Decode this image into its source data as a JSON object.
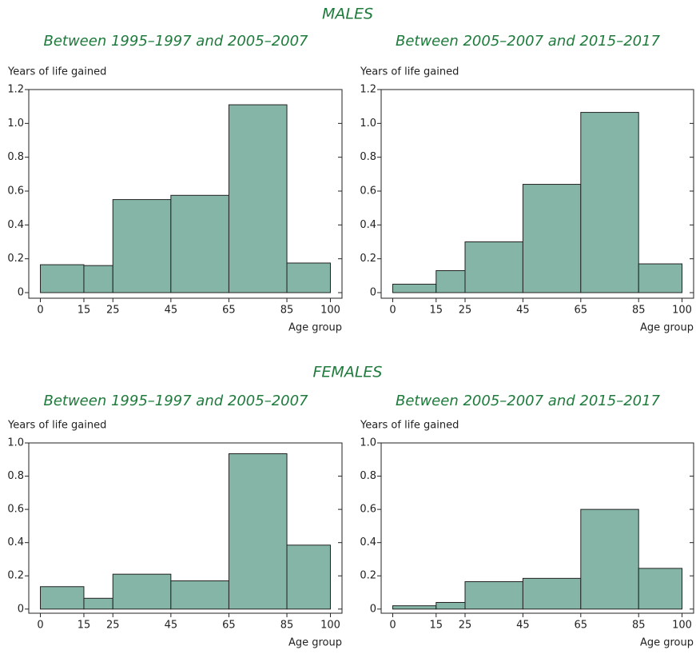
{
  "headings": [
    "MALES",
    "FEMALES"
  ],
  "chart_data": [
    {
      "type": "histogram",
      "title": "Between 1995–1997 and 2005–2007",
      "ylabel": "Years of life gained",
      "xlabel": "Age group",
      "bins": [
        0,
        15,
        25,
        45,
        65,
        85,
        100
      ],
      "values": [
        0.165,
        0.16,
        0.55,
        0.575,
        1.11,
        0.175
      ],
      "color": "#84b5a6",
      "xlim": [
        -4,
        104
      ],
      "xticks": [
        0,
        15,
        25,
        45,
        65,
        85,
        100
      ],
      "ylim": [
        -0.033,
        1.2
      ],
      "yticks": [
        0,
        0.2,
        0.4,
        0.6,
        0.8,
        {
          "value": 1,
          "label": "1.0"
        },
        1.2
      ]
    },
    {
      "type": "histogram",
      "title": "Between 2005–2007 and 2015–2017",
      "ylabel": "Years of life gained",
      "xlabel": "Age group",
      "bins": [
        0,
        15,
        25,
        45,
        65,
        85,
        100
      ],
      "values": [
        0.05,
        0.13,
        0.3,
        0.64,
        1.065,
        0.17
      ],
      "color": "#84b5a6",
      "xlim": [
        -4,
        104
      ],
      "xticks": [
        0,
        15,
        25,
        45,
        65,
        85,
        100
      ],
      "ylim": [
        -0.033,
        1.2
      ],
      "yticks": [
        0,
        0.2,
        0.4,
        0.6,
        0.8,
        {
          "value": 1,
          "label": "1.0"
        },
        1.2
      ]
    },
    {
      "type": "histogram",
      "title": "Between 1995–1997 and 2005–2007",
      "ylabel": "Years of life gained",
      "xlabel": "Age group",
      "bins": [
        0,
        15,
        25,
        45,
        65,
        85,
        100
      ],
      "values": [
        0.135,
        0.065,
        0.21,
        0.17,
        0.935,
        0.385
      ],
      "color": "#84b5a6",
      "xlim": [
        -4,
        104
      ],
      "xticks": [
        0,
        15,
        25,
        45,
        65,
        85,
        100
      ],
      "ylim": [
        -0.025,
        1
      ],
      "yticks": [
        0,
        0.2,
        0.4,
        0.6,
        0.8,
        {
          "value": 1,
          "label": "1.0"
        }
      ]
    },
    {
      "type": "histogram",
      "title": "Between 2005–2007 and 2015–2017",
      "ylabel": "Years of life gained",
      "xlabel": "Age group",
      "bins": [
        0,
        15,
        25,
        45,
        65,
        85,
        100
      ],
      "values": [
        0.02,
        0.04,
        0.165,
        0.185,
        0.6,
        0.245
      ],
      "color": "#84b5a6",
      "xlim": [
        -4,
        104
      ],
      "xticks": [
        0,
        15,
        25,
        45,
        65,
        85,
        100
      ],
      "ylim": [
        -0.025,
        1
      ],
      "yticks": [
        0,
        0.2,
        0.4,
        0.6,
        0.8,
        {
          "value": 1,
          "label": "1.0"
        }
      ]
    }
  ]
}
